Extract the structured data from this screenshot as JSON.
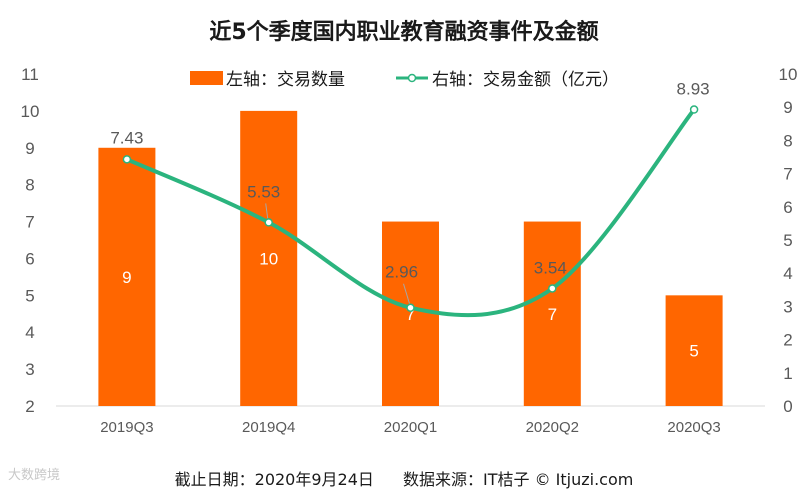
{
  "chart_data": {
    "type": "bar",
    "title": "近5个季度国内职业教育融资事件及金额",
    "categories": [
      "2019Q3",
      "2019Q4",
      "2020Q1",
      "2020Q2",
      "2020Q3"
    ],
    "series": [
      {
        "name": "左轴：交易数量",
        "type": "bar",
        "axis": "left",
        "color": "#ff6600",
        "values": [
          9,
          10,
          7,
          7,
          5
        ],
        "labels": [
          "9",
          "10",
          "7",
          "7",
          "5"
        ]
      },
      {
        "name": "右轴：交易金额（亿元）",
        "type": "line",
        "axis": "right",
        "color": "#2bb47e",
        "values": [
          7.43,
          5.53,
          2.96,
          3.54,
          8.93
        ],
        "labels": [
          "7.43",
          "5.53",
          "2.96",
          "3.54",
          "8.93"
        ]
      }
    ],
    "y_left": {
      "min": 2,
      "max": 11,
      "ticks": [
        "2",
        "3",
        "4",
        "5",
        "6",
        "7",
        "8",
        "9",
        "10",
        "11"
      ]
    },
    "y_right": {
      "min": 0,
      "max": 10,
      "ticks": [
        "0",
        "1",
        "2",
        "3",
        "4",
        "5",
        "6",
        "7",
        "8",
        "9",
        "10"
      ]
    },
    "grid": false,
    "legend_position": "top"
  },
  "footer": {
    "date": "截止日期：2020年9月24日",
    "source": "数据来源：IT桔子 © Itjuzi.com"
  },
  "watermark": "大数跨境"
}
